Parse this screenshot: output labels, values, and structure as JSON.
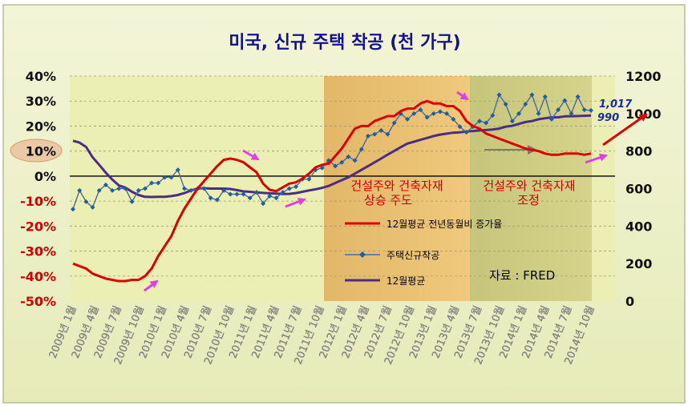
{
  "chart_data": {
    "type": "line",
    "title": "미국, 신규 주택 착공 (천 가구)",
    "source": "자료 : FRED",
    "x_labels": [
      "2009년 1월",
      "2009년 4월",
      "2009년 7월",
      "2009년 10월",
      "2010년 1월",
      "2010년 4월",
      "2010년 7월",
      "2010년 10월",
      "2011년 1월",
      "2011년 4월",
      "2011년 7월",
      "2011년 10월",
      "2012년 1월",
      "2012년 4월",
      "2012년 7월",
      "2012년 10월",
      "2013년 1월",
      "2013년 4월",
      "2013년 7월",
      "2013년 10월",
      "2014년 1월",
      "2014년 4월",
      "2014년 7월",
      "2014년 10월"
    ],
    "y_left": {
      "ticks": [
        "40%",
        "30%",
        "20%",
        "10%",
        "0%",
        "-10%",
        "-20%",
        "-30%",
        "-40%",
        "-50%"
      ],
      "range": [
        -50,
        40
      ],
      "unit": "%"
    },
    "y_right": {
      "ticks": [
        "1200",
        "1000",
        "800",
        "600",
        "400",
        "200",
        "0"
      ],
      "range": [
        0,
        1200
      ]
    },
    "series": [
      {
        "name": "12월평균 전년동월비 증가율",
        "axis": "left",
        "color": "#dd0000",
        "values": [
          -35,
          -36,
          -37,
          -39,
          -40,
          -41,
          -41.5,
          -42,
          -42,
          -41.5,
          -41.5,
          -40,
          -37,
          -32,
          -28,
          -24,
          -18,
          -13,
          -9,
          -5,
          -2,
          1,
          4,
          6.5,
          7,
          6.5,
          5.5,
          3.5,
          1.5,
          -3,
          -5.5,
          -6,
          -4.5,
          -3,
          -2.5,
          -1,
          1,
          3.5,
          4.5,
          5,
          8,
          11,
          15,
          19,
          20,
          20,
          22,
          23,
          24,
          24,
          26,
          27,
          27,
          29,
          30,
          29,
          29,
          28,
          28,
          26,
          22,
          20,
          19,
          17,
          16,
          15,
          14,
          13,
          12,
          11,
          10.5,
          10,
          9,
          8.5,
          8.5,
          9,
          9,
          9,
          8.5,
          9
        ]
      },
      {
        "name": "주택신규착공",
        "axis": "right",
        "color": "#4a6a9a",
        "values": [
          490,
          590,
          530,
          500,
          590,
          620,
          590,
          600,
          600,
          530,
          590,
          600,
          630,
          630,
          660,
          660,
          700,
          600,
          590,
          600,
          600,
          550,
          540,
          590,
          570,
          570,
          570,
          550,
          580,
          520,
          560,
          550,
          580,
          600,
          610,
          650,
          650,
          700,
          710,
          750,
          720,
          740,
          770,
          750,
          810,
          880,
          890,
          910,
          890,
          950,
          1000,
          970,
          1000,
          1020,
          980,
          1000,
          1010,
          1000,
          970,
          930,
          900,
          930,
          960,
          950,
          990,
          1100,
          1050,
          960,
          1000,
          1050,
          1100,
          1000,
          1090,
          970,
          1020,
          1070,
          1000,
          1090,
          1020,
          1017
        ]
      },
      {
        "name": "12월평균",
        "axis": "right",
        "color": "#4b2e83",
        "values": [
          855,
          845,
          822,
          767,
          727,
          685,
          648,
          617,
          605,
          583,
          566,
          556,
          555,
          556,
          556,
          560,
          566,
          576,
          590,
          600,
          602,
          600,
          600,
          600,
          598,
          592,
          585,
          583,
          580,
          577,
          575,
          573,
          571,
          572,
          576,
          583,
          590,
          596,
          604,
          614,
          630,
          645,
          660,
          680,
          700,
          720,
          740,
          760,
          781,
          801,
          821,
          840,
          850,
          860,
          870,
          880,
          888,
          893,
          898,
          900,
          905,
          907,
          910,
          912,
          915,
          920,
          930,
          935,
          945,
          955,
          960,
          970,
          975,
          980,
          980,
          985,
          986,
          987,
          988,
          990
        ]
      }
    ],
    "annotations": {
      "phase1": [
        "건설주와 건축자재",
        "상승 주도"
      ],
      "phase2": [
        "건설주와 건축자재",
        "조정"
      ],
      "last_value_main": "1,017",
      "last_value_avg": "990",
      "highlighted_tick": "10%"
    },
    "legend_position": "right",
    "grid": true
  }
}
